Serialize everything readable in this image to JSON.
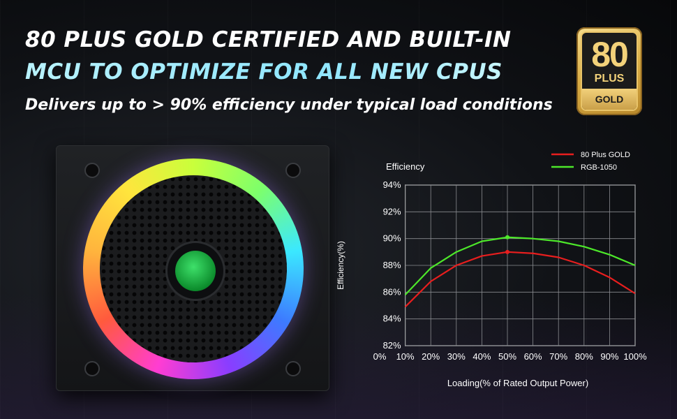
{
  "header": {
    "headline_line1": "80 PLUS GOLD CERTIFIED AND BUILT-IN",
    "headline_line2": "MCU TO OPTIMIZE FOR ALL NEW CPUS",
    "subtitle": "Delivers up to > 90% efficiency under typical load conditions"
  },
  "badge": {
    "number": "80",
    "plus": "PLUS",
    "tier": "GOLD"
  },
  "chart_data": {
    "type": "line",
    "title": "Efficiency",
    "xlabel": "Loading(% of Rated Output Power)",
    "ylabel": "Efficiency(%)",
    "x_ticks": [
      "0%",
      "10%",
      "20%",
      "30%",
      "40%",
      "50%",
      "60%",
      "70%",
      "80%",
      "90%",
      "100%"
    ],
    "y_ticks": [
      "94%",
      "92%",
      "90%",
      "88%",
      "86%",
      "84%",
      "82%"
    ],
    "xlim": [
      10,
      100
    ],
    "ylim": [
      82,
      94
    ],
    "grid": true,
    "legend_position": "top-right",
    "series": [
      {
        "name": "80 Plus GOLD",
        "color": "#e81e1e",
        "x": [
          10,
          20,
          30,
          40,
          50,
          60,
          70,
          80,
          90,
          100
        ],
        "y": [
          84.9,
          86.8,
          88.0,
          88.7,
          89.0,
          88.9,
          88.6,
          88.0,
          87.1,
          85.9
        ],
        "marker_at": 50
      },
      {
        "name": "RGB-1050",
        "color": "#4de82a",
        "x": [
          10,
          20,
          30,
          40,
          50,
          60,
          70,
          80,
          90,
          100
        ],
        "y": [
          85.8,
          87.8,
          89.0,
          89.8,
          90.1,
          90.0,
          89.8,
          89.4,
          88.8,
          88.0
        ],
        "marker_at": 50
      }
    ]
  }
}
